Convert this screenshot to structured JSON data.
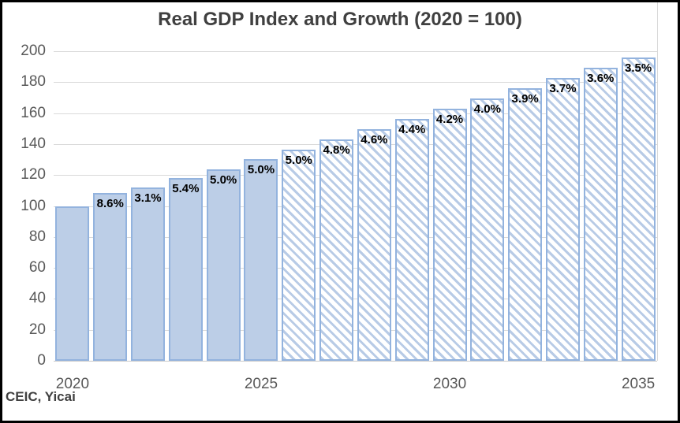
{
  "chart_data": {
    "type": "bar",
    "title": "Real GDP Index and Growth (2020 = 100)",
    "source_note": "CEIC, Yicai",
    "xlabel": "",
    "ylabel": "",
    "ylim": [
      0,
      200
    ],
    "ytick_step": 20,
    "grid": "horizontal",
    "legend": "none",
    "categories": [
      "2020",
      "2021",
      "2022",
      "2023",
      "2024",
      "2025",
      "2026",
      "2027",
      "2028",
      "2029",
      "2030",
      "2031",
      "2032",
      "2033",
      "2034",
      "2035"
    ],
    "series": [
      {
        "name": "Real GDP Index (2020 = 100)",
        "values": [
          100,
          108.6,
          112.0,
          118.0,
          123.9,
          130.1,
          136.6,
          143.2,
          149.8,
          156.3,
          162.9,
          169.4,
          176.0,
          182.6,
          189.1,
          195.7
        ]
      }
    ],
    "growth_labels": [
      "",
      "8.6%",
      "3.1%",
      "5.4%",
      "5.0%",
      "5.0%",
      "5.0%",
      "4.8%",
      "4.6%",
      "4.4%",
      "4.2%",
      "4.0%",
      "3.9%",
      "3.7%",
      "3.6%",
      "3.5%"
    ],
    "bar_fill_styles": [
      "solid",
      "solid",
      "solid",
      "solid",
      "solid",
      "solid",
      "hatched",
      "hatched",
      "hatched",
      "hatched",
      "hatched",
      "hatched",
      "hatched",
      "hatched",
      "hatched",
      "hatched"
    ],
    "xticks_shown": [
      {
        "index": 0,
        "label": "2020"
      },
      {
        "index": 5,
        "label": "2025"
      },
      {
        "index": 10,
        "label": "2030"
      },
      {
        "index": 15,
        "label": "2035"
      }
    ],
    "colors": {
      "solid_fill": "#bccee7",
      "bar_border": "#93b3de",
      "hatch_stripe": "#b8cbe6",
      "gridline": "#d9d9d9",
      "axis_baseline": "#c9c9c9",
      "title_color": "#404040",
      "tick_color": "#595959",
      "data_label_color": "#000000",
      "outer_border": "#000000"
    }
  }
}
